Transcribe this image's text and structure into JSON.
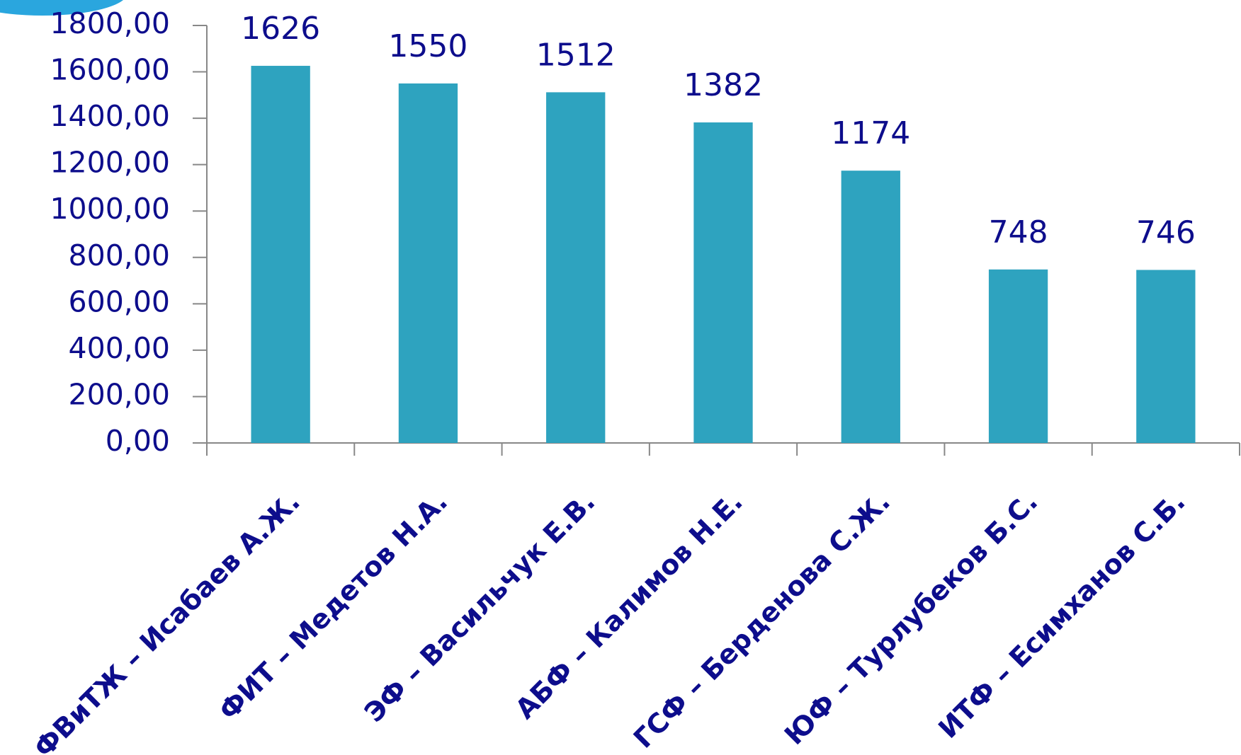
{
  "chart_data": {
    "type": "bar",
    "categories": [
      "ФВиТЖ – Исабаев А.Ж.",
      "ФИТ – Медетов Н.А.",
      "ЭФ – Васильчук Е.В.",
      "АБФ – Калимов Н.Е.",
      "ГСФ – Берденова С.Ж.",
      "ЮФ – Турлубеков Б.С.",
      "ИТФ – Есимханов С.Б."
    ],
    "values": [
      1626,
      1550,
      1512,
      1382,
      1174,
      748,
      746
    ],
    "color": "#2ea3bf",
    "ylim": [
      0,
      1800
    ],
    "yticks": [
      {
        "value": 0,
        "label": "0,00"
      },
      {
        "value": 200,
        "label": "200,00"
      },
      {
        "value": 400,
        "label": "400,00"
      },
      {
        "value": 600,
        "label": "600,00"
      },
      {
        "value": 800,
        "label": "800,00"
      },
      {
        "value": 1000,
        "label": "1000,00"
      },
      {
        "value": 1200,
        "label": "1200,00"
      },
      {
        "value": 1400,
        "label": "1400,00"
      },
      {
        "value": 1600,
        "label": "1600,00"
      },
      {
        "value": 1800,
        "label": "1800,00"
      }
    ],
    "grid": false
  }
}
